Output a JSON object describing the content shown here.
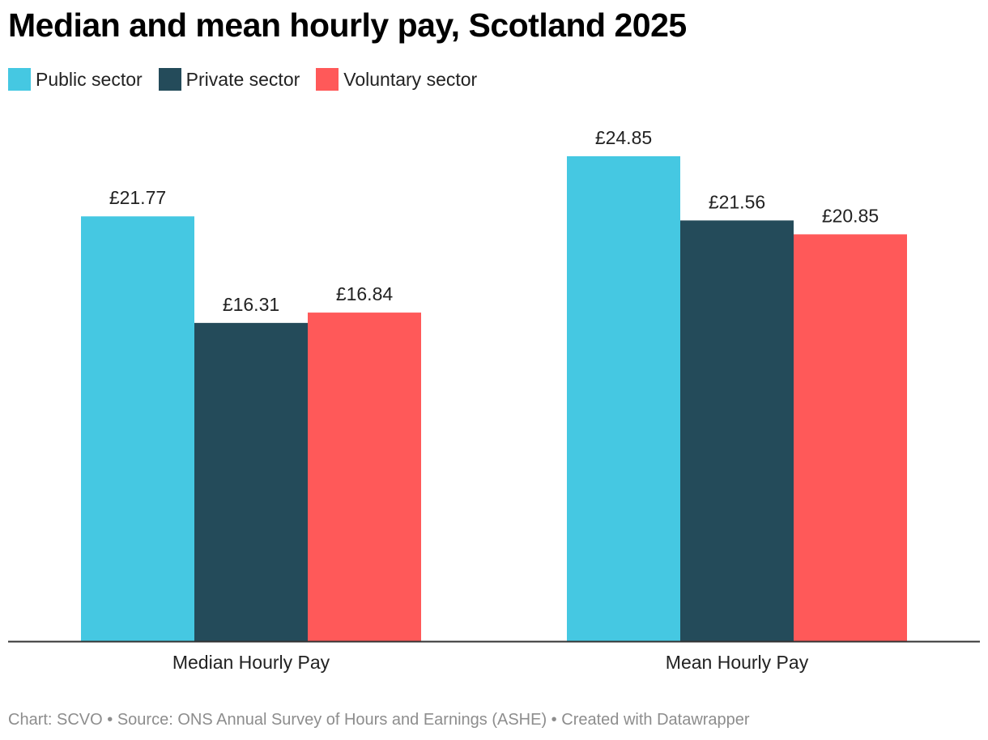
{
  "title": "Median and mean hourly pay, Scotland 2025",
  "legend": {
    "items": [
      {
        "label": "Public sector",
        "color": "#45c8e2"
      },
      {
        "label": "Private sector",
        "color": "#244b5a"
      },
      {
        "label": "Voluntary sector",
        "color": "#ff5959"
      }
    ]
  },
  "footer": {
    "chart_credit": "Chart: SCVO",
    "source": "Source: ONS Annual Survey of Hours and Earnings (ASHE)",
    "tool": "Created with Datawrapper",
    "separator": "•"
  },
  "chart_data": {
    "type": "bar",
    "title": "Median and mean hourly pay, Scotland 2025",
    "categories": [
      "Median Hourly Pay",
      "Mean Hourly Pay"
    ],
    "series": [
      {
        "name": "Public sector",
        "color": "#45c8e2",
        "values": [
          21.77,
          24.85
        ],
        "labels": [
          "£21.77",
          "£24.85"
        ]
      },
      {
        "name": "Private sector",
        "color": "#244b5a",
        "values": [
          16.31,
          21.56
        ],
        "labels": [
          "£16.31",
          "£21.56"
        ]
      },
      {
        "name": "Voluntary sector",
        "color": "#ff5959",
        "values": [
          16.84,
          20.85
        ],
        "labels": [
          "£16.84",
          "£20.85"
        ]
      }
    ],
    "xlabel": "",
    "ylabel": "",
    "ylim": [
      0,
      24.85
    ],
    "grid": false,
    "legend_position": "top-left"
  }
}
